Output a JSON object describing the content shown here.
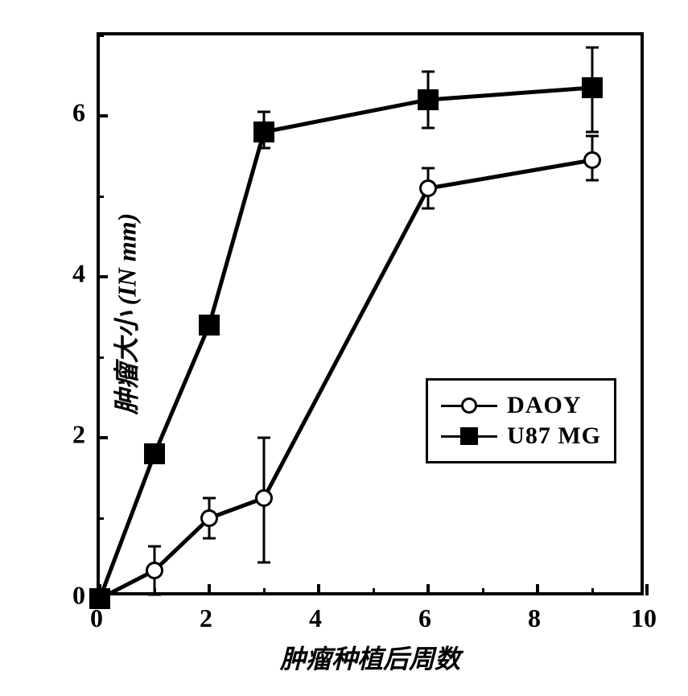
{
  "chart": {
    "type": "line",
    "xlabel": "肿瘤种植后周数",
    "ylabel": "肿瘤大小 (IN mm)",
    "label_fontsize": 32,
    "xlim": [
      0,
      10
    ],
    "ylim": [
      0,
      7
    ],
    "xtick_major": [
      0,
      2,
      4,
      6,
      8,
      10
    ],
    "xtick_minor": [
      1,
      3,
      5,
      7,
      9
    ],
    "ytick_major": [
      0,
      2,
      4,
      6
    ],
    "ytick_minor": [
      1,
      3,
      5,
      7
    ],
    "tick_fontsize": 32,
    "background_color": "#ffffff",
    "border_color": "#000000",
    "border_width": 4,
    "line_width": 5,
    "series": [
      {
        "name": "DAOY",
        "marker": "circle-open",
        "marker_size": 22,
        "marker_border_width": 3,
        "marker_fill": "#ffffff",
        "marker_stroke": "#000000",
        "line_color": "#000000",
        "x": [
          0,
          1,
          2,
          3,
          6,
          9
        ],
        "y": [
          0,
          0.35,
          1.0,
          1.25,
          5.1,
          5.45
        ],
        "err_low": [
          0,
          0.3,
          0.25,
          0.8,
          0.25,
          0.25
        ],
        "err_high": [
          0,
          0.3,
          0.25,
          0.75,
          0.25,
          0.3
        ]
      },
      {
        "name": "U87 MG",
        "marker": "square-filled",
        "marker_size": 26,
        "marker_fill": "#000000",
        "marker_stroke": "#000000",
        "line_color": "#000000",
        "x": [
          0,
          1,
          2,
          3,
          6,
          9
        ],
        "y": [
          0,
          1.8,
          3.4,
          5.8,
          6.2,
          6.35
        ],
        "err_low": [
          0,
          0,
          0,
          0.2,
          0.35,
          0.55
        ],
        "err_high": [
          0,
          0,
          0,
          0.25,
          0.35,
          0.5
        ]
      }
    ],
    "err_cap_width": 16,
    "legend": {
      "position": "bottom-right",
      "inset_x": 30,
      "inset_y": 160,
      "border_width": 3,
      "fontsize": 30
    }
  }
}
